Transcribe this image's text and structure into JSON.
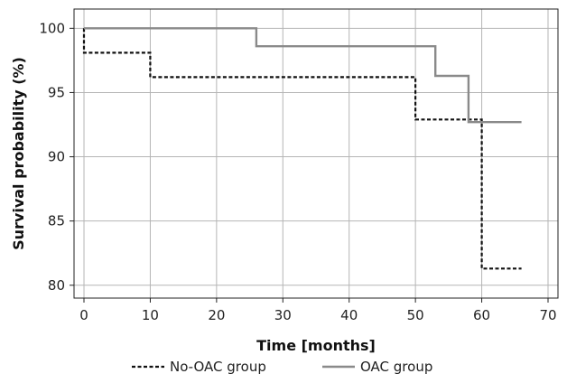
{
  "chart_data": {
    "type": "line",
    "subtype": "kaplan-meier step",
    "title": "",
    "xlabel": "Time [months]",
    "ylabel": "Survival probability (%)",
    "xlim": [
      -1.5,
      71.5
    ],
    "ylim": [
      79,
      101.5
    ],
    "xticks": [
      0,
      10,
      20,
      30,
      40,
      50,
      60,
      70
    ],
    "yticks": [
      80,
      85,
      90,
      95,
      100
    ],
    "grid": true,
    "legend_position": "bottom",
    "series": [
      {
        "name": "No-OAC group",
        "style": "dotted",
        "color": "#111111",
        "points": [
          [
            0,
            100
          ],
          [
            0,
            98.1
          ],
          [
            10,
            98.1
          ],
          [
            10,
            96.2
          ],
          [
            50,
            96.2
          ],
          [
            50,
            92.9
          ],
          [
            60,
            92.9
          ],
          [
            60,
            81.3
          ],
          [
            66,
            81.3
          ]
        ]
      },
      {
        "name": "OAC group",
        "style": "solid",
        "color": "#8a8a8a",
        "points": [
          [
            0,
            100
          ],
          [
            26,
            100
          ],
          [
            26,
            98.6
          ],
          [
            53,
            98.6
          ],
          [
            53,
            96.3
          ],
          [
            58,
            96.3
          ],
          [
            58,
            92.7
          ],
          [
            66,
            92.7
          ]
        ]
      }
    ]
  }
}
